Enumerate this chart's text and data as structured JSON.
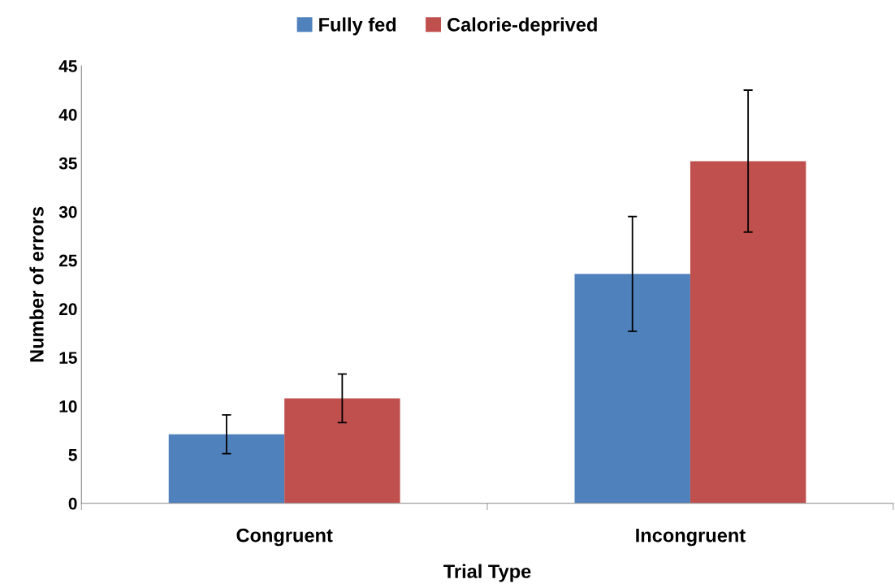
{
  "chart_data": {
    "type": "bar",
    "xlabel": "Trial Type",
    "ylabel": "Number of errors",
    "categories": [
      "Congruent",
      "Incongruent"
    ],
    "series": [
      {
        "name": "Fully fed",
        "color": "#4f81bd",
        "values": [
          7.1,
          23.6
        ],
        "errors": [
          2.0,
          5.9
        ]
      },
      {
        "name": "Calorie-deprived",
        "color": "#c0504d",
        "values": [
          10.8,
          35.2
        ],
        "errors": [
          2.5,
          7.3
        ]
      }
    ],
    "ylim": [
      0,
      45
    ],
    "yticks": [
      0,
      5,
      10,
      15,
      20,
      25,
      30,
      35,
      40,
      45
    ],
    "grid": false,
    "legend": "top"
  }
}
